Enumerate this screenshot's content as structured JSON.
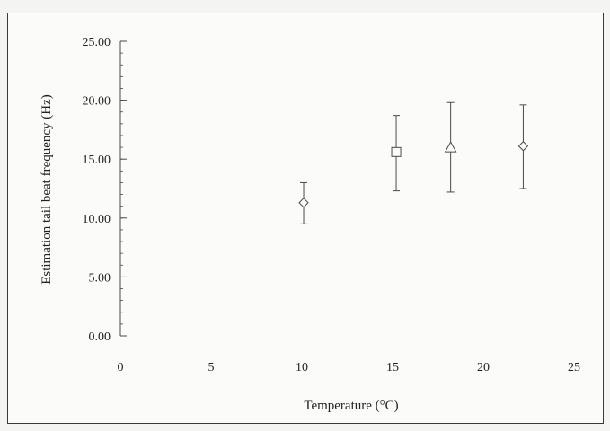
{
  "chart_data": {
    "type": "scatter",
    "title": "",
    "xlabel": "Temperature (°C)",
    "ylabel": "Estimation tail beat frequency (Hz)",
    "xlim": [
      0,
      25
    ],
    "ylim": [
      0,
      25
    ],
    "x_ticks": [
      0,
      5,
      10,
      15,
      20,
      25
    ],
    "y_ticks": [
      "0.00",
      "5.00",
      "10.00",
      "15.00",
      "20.00",
      "25.00"
    ],
    "y_minor_step": 1,
    "grid": false,
    "legend": "none",
    "points": [
      {
        "x": 10.1,
        "y": 11.3,
        "err_low": 9.5,
        "err_high": 13.0,
        "marker": "diamond"
      },
      {
        "x": 15.2,
        "y": 15.6,
        "err_low": 12.3,
        "err_high": 18.7,
        "marker": "square"
      },
      {
        "x": 18.2,
        "y": 16.0,
        "err_low": 12.2,
        "err_high": 19.8,
        "marker": "triangle"
      },
      {
        "x": 22.2,
        "y": 16.1,
        "err_low": 12.5,
        "err_high": 19.6,
        "marker": "diamond"
      }
    ],
    "colors": {
      "ink": "#4a4a4a",
      "frame": "#3a3a3a"
    }
  }
}
